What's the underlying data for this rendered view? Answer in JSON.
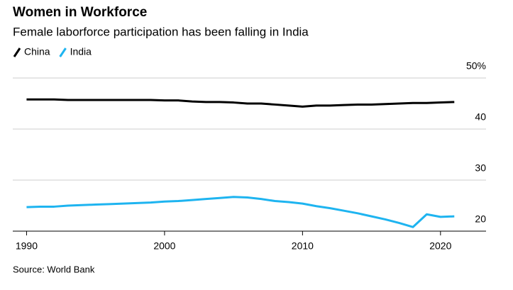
{
  "chart_data": {
    "type": "line",
    "title": "Women in Workforce",
    "subtitle": "Female laborforce participation has been falling in India",
    "source": "Source: World Bank",
    "x": [
      1990,
      1991,
      1992,
      1993,
      1994,
      1995,
      1996,
      1997,
      1998,
      1999,
      2000,
      2001,
      2002,
      2003,
      2004,
      2005,
      2006,
      2007,
      2008,
      2009,
      2010,
      2011,
      2012,
      2013,
      2014,
      2015,
      2016,
      2017,
      2018,
      2019,
      2020,
      2021
    ],
    "series": [
      {
        "name": "China",
        "color": "#000000",
        "values": [
          45.8,
          45.8,
          45.8,
          45.7,
          45.7,
          45.7,
          45.7,
          45.7,
          45.7,
          45.7,
          45.6,
          45.6,
          45.4,
          45.3,
          45.3,
          45.2,
          45.0,
          45.0,
          44.8,
          44.6,
          44.4,
          44.6,
          44.6,
          44.7,
          44.8,
          44.8,
          44.9,
          45.0,
          45.1,
          45.1,
          45.2,
          45.3
        ]
      },
      {
        "name": "India",
        "color": "#1eb4f0",
        "values": [
          24.7,
          24.8,
          24.8,
          25.0,
          25.1,
          25.2,
          25.3,
          25.4,
          25.5,
          25.6,
          25.8,
          25.9,
          26.1,
          26.3,
          26.5,
          26.7,
          26.6,
          26.3,
          25.9,
          25.7,
          25.4,
          24.9,
          24.5,
          24.0,
          23.5,
          22.9,
          22.3,
          21.6,
          20.8,
          23.3,
          22.8,
          22.9
        ]
      }
    ],
    "xlim": [
      1989,
      2023.3
    ],
    "xticks": [
      1990,
      2000,
      2010,
      2020
    ],
    "ylim": [
      20,
      50
    ],
    "yticks": [
      20,
      30,
      40,
      {
        "value": 50,
        "label": "50%"
      }
    ],
    "grid": true
  }
}
